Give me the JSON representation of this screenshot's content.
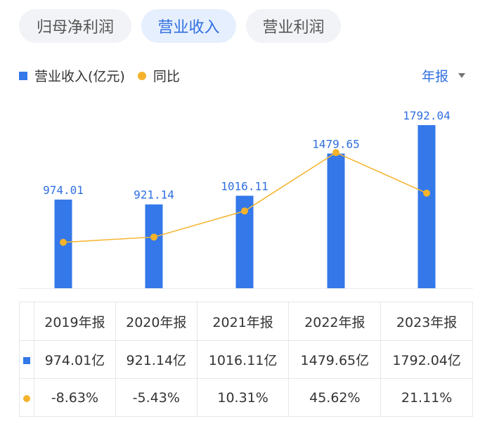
{
  "tabs": [
    {
      "label": "归母净利润",
      "active": false
    },
    {
      "label": "营业收入",
      "active": true
    },
    {
      "label": "营业利润",
      "active": false
    }
  ],
  "legend": {
    "bar_label": "营业收入(亿元)",
    "line_label": "同比"
  },
  "period_selector": {
    "label": "年报"
  },
  "colors": {
    "bar": "#3478ea",
    "line": "#f5b32b",
    "accent": "#2f6fe0",
    "negative": "#1aa36b",
    "positive": "#ee3b3b"
  },
  "chart_data": {
    "type": "bar",
    "categories": [
      "2019年报",
      "2020年报",
      "2021年报",
      "2022年报",
      "2023年报"
    ],
    "series": [
      {
        "name": "营业收入(亿元)",
        "type": "bar",
        "values": [
          974.01,
          921.14,
          1016.11,
          1479.65,
          1792.04
        ],
        "labels": [
          "974.01",
          "921.14",
          "1016.11",
          "1479.65",
          "1792.04"
        ]
      },
      {
        "name": "同比",
        "type": "line",
        "unit": "%",
        "values": [
          -8.63,
          -5.43,
          10.31,
          45.62,
          21.11
        ]
      }
    ],
    "ylim": [
      0,
      1792.04
    ]
  },
  "table": {
    "headers": [
      "2019年报",
      "2020年报",
      "2021年报",
      "2022年报",
      "2023年报"
    ],
    "revenue": [
      "974.01亿",
      "921.14亿",
      "1016.11亿",
      "1479.65亿",
      "1792.04亿"
    ],
    "yoy": [
      "-8.63%",
      "-5.43%",
      "10.31%",
      "45.62%",
      "21.11%"
    ]
  }
}
